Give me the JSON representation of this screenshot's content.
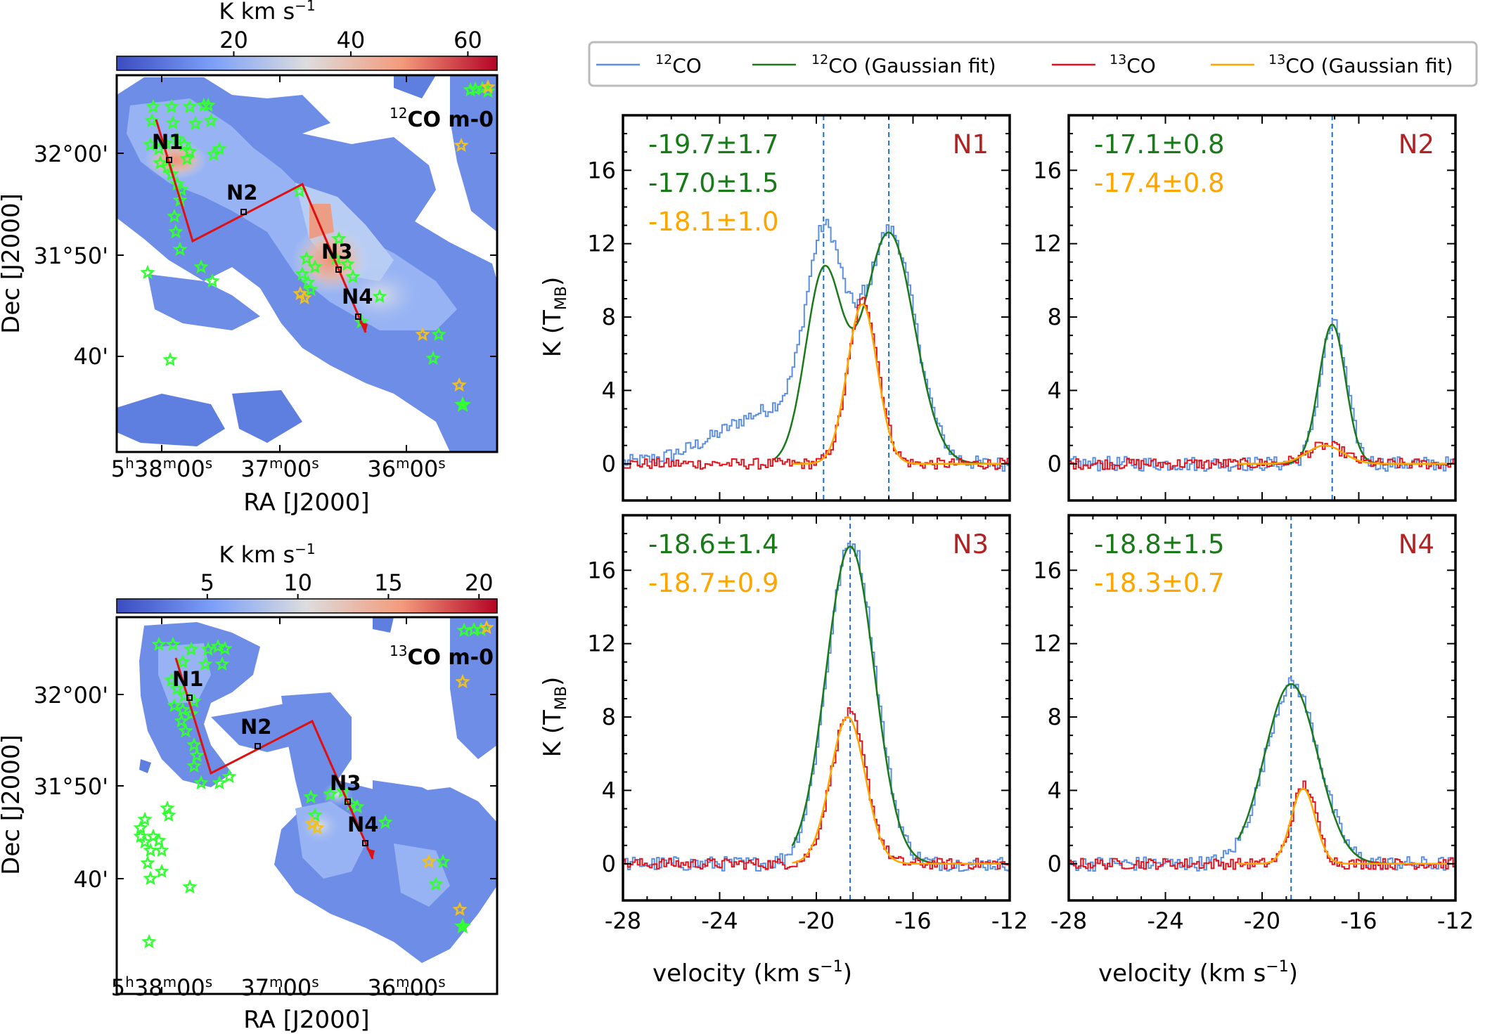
{
  "colors": {
    "co12": "#5b8fe0",
    "co12fit": "#1a7a1a",
    "co13": "#e0141e",
    "co13fit": "#ffa500",
    "vline": "#1f6fbf",
    "panel_label": "#b22222",
    "star": "#33ff33",
    "star_young": "#f0c020",
    "track": "#dd1111"
  },
  "legend": {
    "co12": {
      "sup": "12",
      "text": "CO"
    },
    "co12fit": {
      "sup": "12",
      "text": "CO (Gaussian fit)"
    },
    "co13": {
      "sup": "13",
      "text": "CO"
    },
    "co13fit": {
      "sup": "13",
      "text": "CO (Gaussian fit)"
    }
  },
  "maps": [
    {
      "name": "12CO map",
      "label_sup": "12",
      "label_text": "CO m-0",
      "colorbar_title": "K km s",
      "colorbar_sup": "−1",
      "colorbar_range": [
        0,
        65
      ],
      "colorbar_ticks": [
        "20",
        "40",
        "60"
      ],
      "colorbar_tick_values": [
        20,
        40,
        60
      ],
      "ra_ticks": [
        {
          "h": "5",
          "m": "38",
          "s": "00",
          "hasHour": true
        },
        {
          "m": "37",
          "s": "00",
          "hasHour": false
        },
        {
          "m": "36",
          "s": "00",
          "hasHour": false
        }
      ],
      "dec_ticks": [
        "32°00'",
        "31°50'",
        "40'"
      ],
      "xlabel": "RA [J2000]",
      "ylabel": "Dec [J2000]",
      "positions": [
        "N1",
        "N2",
        "N3",
        "N4"
      ]
    },
    {
      "name": "13CO map",
      "label_sup": "13",
      "label_text": "CO m-0",
      "colorbar_title": "K km s",
      "colorbar_sup": "−1",
      "colorbar_range": [
        0,
        21
      ],
      "colorbar_ticks": [
        "5",
        "10",
        "15",
        "20"
      ],
      "colorbar_tick_values": [
        5,
        10,
        15,
        20
      ],
      "ra_ticks": [
        {
          "h": "5",
          "m": "38",
          "s": "00",
          "hasHour": true
        },
        {
          "m": "37",
          "s": "00",
          "hasHour": false
        },
        {
          "m": "36",
          "s": "00",
          "hasHour": false
        }
      ],
      "dec_ticks": [
        "32°00'",
        "31°50'",
        "40'"
      ],
      "xlabel": "RA [J2000]",
      "ylabel": "Dec [J2000]",
      "positions": [
        "N1",
        "N2",
        "N3",
        "N4"
      ]
    }
  ],
  "chart_data": [
    {
      "type": "line",
      "title": "N1",
      "xlabel": "velocity (km s⁻¹)",
      "ylabel": "K (T_MB)",
      "xlim": [
        -28,
        -12
      ],
      "ylim": [
        -2,
        19
      ],
      "xticks": [
        -28,
        -24,
        -20,
        -16,
        -12
      ],
      "yticks": [
        0,
        4,
        8,
        12,
        16
      ],
      "annotations": [
        {
          "text": "-19.7±1.7",
          "series": "12CO (Gaussian fit)"
        },
        {
          "text": "-17.0±1.5",
          "series": "12CO (Gaussian fit)"
        },
        {
          "text": "-18.1±1.0",
          "series": "13CO (Gaussian fit)"
        }
      ],
      "vlines": [
        -19.7,
        -17.0
      ],
      "series": [
        {
          "name": "12CO",
          "kind": "spectrum",
          "components": [
            {
              "amp": 10.3,
              "center": -19.7,
              "sigma": 0.75
            },
            {
              "amp": 12.6,
              "center": -17.0,
              "sigma": 1.05
            }
          ],
          "wing": {
            "amp": 3.0,
            "center": -21.5,
            "sigma": 2.4
          },
          "noise": 0.4
        },
        {
          "name": "12CO (Gaussian fit)",
          "kind": "fit",
          "components": [
            {
              "amp": 10.3,
              "center": -19.7,
              "sigma": 0.75
            },
            {
              "amp": 12.6,
              "center": -17.0,
              "sigma": 1.05
            }
          ],
          "range": [
            -21.8,
            -12.2
          ]
        },
        {
          "name": "13CO",
          "kind": "spectrum",
          "components": [
            {
              "amp": 8.9,
              "center": -18.1,
              "sigma": 0.62
            }
          ],
          "noise": 0.3
        },
        {
          "name": "13CO (Gaussian fit)",
          "kind": "fit",
          "components": [
            {
              "amp": 8.7,
              "center": -18.1,
              "sigma": 0.62
            }
          ],
          "range": [
            -21.0,
            -12.2
          ]
        }
      ]
    },
    {
      "type": "line",
      "title": "N2",
      "xlabel": "velocity (km s⁻¹)",
      "ylabel": "K (T_MB)",
      "xlim": [
        -28,
        -12
      ],
      "ylim": [
        -2,
        19
      ],
      "xticks": [
        -28,
        -24,
        -20,
        -16,
        -12
      ],
      "yticks": [
        0,
        4,
        8,
        12,
        16
      ],
      "annotations": [
        {
          "text": "-17.1±0.8",
          "series": "12CO (Gaussian fit)"
        },
        {
          "text": "-17.4±0.8",
          "series": "13CO (Gaussian fit)"
        }
      ],
      "vlines": [
        -17.1
      ],
      "series": [
        {
          "name": "12CO",
          "kind": "spectrum",
          "components": [
            {
              "amp": 7.6,
              "center": -17.1,
              "sigma": 0.55
            }
          ],
          "noise": 0.4
        },
        {
          "name": "12CO (Gaussian fit)",
          "kind": "fit",
          "components": [
            {
              "amp": 7.6,
              "center": -17.1,
              "sigma": 0.55
            }
          ],
          "range": [
            -19.8,
            -12.2
          ]
        },
        {
          "name": "13CO",
          "kind": "spectrum",
          "components": [
            {
              "amp": 1.0,
              "center": -17.4,
              "sigma": 0.75
            }
          ],
          "noise": 0.3
        },
        {
          "name": "13CO (Gaussian fit)",
          "kind": "fit",
          "components": [
            {
              "amp": 1.0,
              "center": -17.4,
              "sigma": 0.75
            }
          ],
          "range": [
            -21.0,
            -12.2
          ]
        }
      ]
    },
    {
      "type": "line",
      "title": "N3",
      "xlabel": "velocity (km s⁻¹)",
      "ylabel": "K (T_MB)",
      "xlim": [
        -28,
        -12
      ],
      "ylim": [
        -2,
        19
      ],
      "xticks": [
        -28,
        -24,
        -20,
        -16,
        -12
      ],
      "yticks": [
        0,
        4,
        8,
        12,
        16
      ],
      "annotations": [
        {
          "text": "-18.6±1.4",
          "series": "12CO (Gaussian fit)"
        },
        {
          "text": "-18.7±0.9",
          "series": "13CO (Gaussian fit)"
        }
      ],
      "vlines": [
        -18.6
      ],
      "series": [
        {
          "name": "12CO",
          "kind": "spectrum",
          "components": [
            {
              "amp": 17.5,
              "center": -18.6,
              "sigma": 1.0
            }
          ],
          "noise": 0.4
        },
        {
          "name": "12CO (Gaussian fit)",
          "kind": "fit",
          "components": [
            {
              "amp": 17.3,
              "center": -18.6,
              "sigma": 1.0
            }
          ],
          "range": [
            -21.0,
            -12.2
          ]
        },
        {
          "name": "13CO",
          "kind": "spectrum",
          "components": [
            {
              "amp": 8.2,
              "center": -18.7,
              "sigma": 0.72
            }
          ],
          "noise": 0.3
        },
        {
          "name": "13CO (Gaussian fit)",
          "kind": "fit",
          "components": [
            {
              "amp": 8.0,
              "center": -18.7,
              "sigma": 0.72
            }
          ],
          "range": [
            -21.0,
            -12.2
          ]
        }
      ]
    },
    {
      "type": "line",
      "title": "N4",
      "xlabel": "velocity (km s⁻¹)",
      "ylabel": "K (T_MB)",
      "xlim": [
        -28,
        -12
      ],
      "ylim": [
        -2,
        19
      ],
      "xticks": [
        -28,
        -24,
        -20,
        -16,
        -12
      ],
      "yticks": [
        0,
        4,
        8,
        12,
        16
      ],
      "annotations": [
        {
          "text": "-18.8±1.5",
          "series": "12CO (Gaussian fit)"
        },
        {
          "text": "-18.3±0.7",
          "series": "13CO (Gaussian fit)"
        }
      ],
      "vlines": [
        -18.8
      ],
      "series": [
        {
          "name": "12CO",
          "kind": "spectrum",
          "components": [
            {
              "amp": 9.8,
              "center": -18.8,
              "sigma": 1.1
            }
          ],
          "noise": 0.4
        },
        {
          "name": "12CO (Gaussian fit)",
          "kind": "fit",
          "components": [
            {
              "amp": 9.8,
              "center": -18.8,
              "sigma": 1.1
            }
          ],
          "range": [
            -21.0,
            -12.2
          ]
        },
        {
          "name": "13CO",
          "kind": "spectrum",
          "components": [
            {
              "amp": 4.3,
              "center": -18.3,
              "sigma": 0.5
            }
          ],
          "noise": 0.3
        },
        {
          "name": "13CO (Gaussian fit)",
          "kind": "fit",
          "components": [
            {
              "amp": 4.1,
              "center": -18.3,
              "sigma": 0.5
            }
          ],
          "range": [
            -21.0,
            -12.2
          ]
        }
      ]
    }
  ]
}
